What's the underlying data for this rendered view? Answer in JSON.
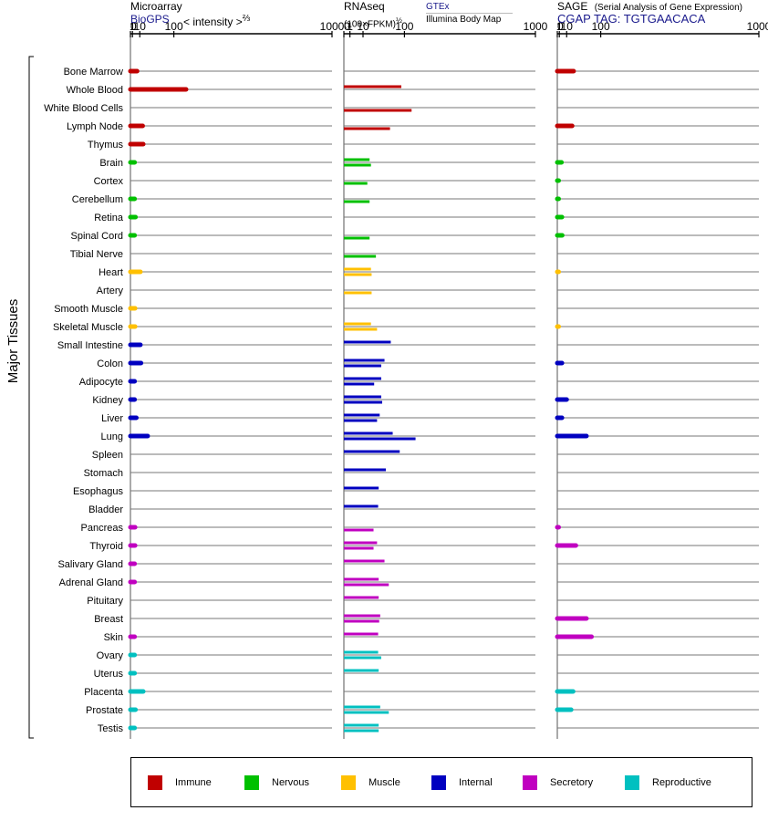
{
  "panels": {
    "microarray": {
      "title": "Microarray",
      "source": "BioGPS",
      "unit": "< intensity >",
      "exponent": "⅔"
    },
    "rnaseq": {
      "title": "RNAseq",
      "unit": "(100×FPKM)",
      "exponent": "½",
      "source_top": "GTEx",
      "source_bottom": "Illumina Body Map"
    },
    "sage": {
      "title": "SAGE",
      "subtitle": "(Serial Analysis of Gene Expression)",
      "source": "CGAP TAG: TGTGAACACA"
    }
  },
  "y_axis_label": "Major Tissues",
  "legend": [
    {
      "label": "Immune",
      "color": "#c00000"
    },
    {
      "label": "Nervous",
      "color": "#00c000"
    },
    {
      "label": "Muscle",
      "color": "#ffc000"
    },
    {
      "label": "Internal",
      "color": "#0000c0"
    },
    {
      "label": "Secretory",
      "color": "#c000c0"
    },
    {
      "label": "Reproductive",
      "color": "#00c0c0"
    }
  ],
  "chart_data": {
    "type": "bar",
    "orientation": "horizontal",
    "axis_ticks": [
      "0",
      "1",
      "10",
      "100",
      "1000"
    ],
    "x_axis_scale": "power",
    "xlim": [
      0,
      1000
    ],
    "categories": [
      "Bone Marrow",
      "Whole Blood",
      "White Blood Cells",
      "Lymph Node",
      "Thymus",
      "Brain",
      "Cortex",
      "Cerebellum",
      "Retina",
      "Spinal Cord",
      "Tibial Nerve",
      "Heart",
      "Artery",
      "Smooth Muscle",
      "Skeletal Muscle",
      "Small Intestine",
      "Colon",
      "Adipocyte",
      "Kidney",
      "Liver",
      "Lung",
      "Spleen",
      "Stomach",
      "Esophagus",
      "Bladder",
      "Pancreas",
      "Thyroid",
      "Salivary Gland",
      "Adrenal Gland",
      "Pituitary",
      "Breast",
      "Skin",
      "Ovary",
      "Uterus",
      "Placenta",
      "Prostate",
      "Testis"
    ],
    "category_system": [
      "Immune",
      "Immune",
      "Immune",
      "Immune",
      "Immune",
      "Nervous",
      "Nervous",
      "Nervous",
      "Nervous",
      "Nervous",
      "Nervous",
      "Muscle",
      "Muscle",
      "Muscle",
      "Muscle",
      "Internal",
      "Internal",
      "Internal",
      "Internal",
      "Internal",
      "Internal",
      "Internal",
      "Internal",
      "Internal",
      "Internal",
      "Secretory",
      "Secretory",
      "Secretory",
      "Secretory",
      "Secretory",
      "Secretory",
      "Secretory",
      "Reproductive",
      "Reproductive",
      "Reproductive",
      "Reproductive",
      "Reproductive"
    ],
    "series": [
      {
        "name": "Microarray",
        "values": [
          6,
          145,
          null,
          15,
          16,
          3,
          null,
          3,
          4,
          3,
          null,
          11,
          null,
          3.5,
          3.5,
          11,
          12,
          3,
          3,
          5,
          25,
          null,
          null,
          null,
          null,
          3.5,
          3.5,
          3,
          3,
          null,
          null,
          3,
          3,
          3,
          16,
          4,
          3
        ]
      },
      {
        "name": "GTEx",
        "values": [
          null,
          90,
          null,
          null,
          null,
          18,
          null,
          null,
          null,
          null,
          null,
          20,
          null,
          null,
          20,
          60,
          45,
          38,
          38,
          35,
          65,
          85,
          48,
          33,
          32,
          null,
          30,
          45,
          33,
          33,
          36,
          32,
          32,
          33,
          null,
          36,
          33
        ]
      },
      {
        "name": "Illumina Body Map",
        "values": [
          null,
          null,
          125,
          58,
          null,
          20,
          15,
          18,
          null,
          18,
          28,
          21,
          21,
          null,
          30,
          null,
          38,
          25,
          40,
          30,
          140,
          null,
          null,
          null,
          null,
          24,
          24,
          null,
          55,
          null,
          34,
          null,
          38,
          null,
          null,
          55,
          33
        ]
      },
      {
        "name": "SAGE",
        "values": [
          23,
          null,
          null,
          20,
          null,
          3,
          0.05,
          0.05,
          3.5,
          3.8,
          null,
          0.02,
          null,
          null,
          0.02,
          null,
          3.5,
          null,
          10,
          3.5,
          55,
          null,
          null,
          null,
          null,
          0.05,
          28,
          null,
          null,
          null,
          55,
          70,
          null,
          null,
          22,
          18,
          null
        ]
      }
    ]
  }
}
